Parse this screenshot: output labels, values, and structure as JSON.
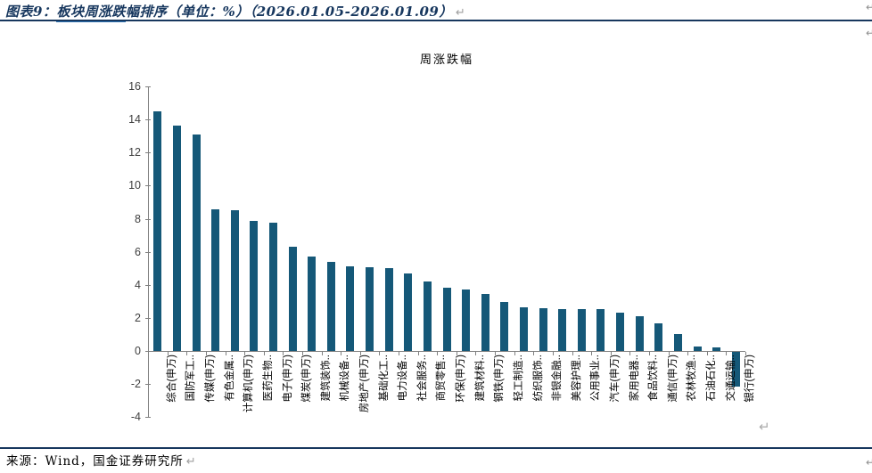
{
  "page": {
    "header": {
      "prefix": "图表9：",
      "underlined": "板块周涨跌",
      "suffix": "幅排序（单位：%）（2026.01.05-2026.01.09）",
      "return_mark": "↵"
    },
    "footer": {
      "source": "来源：Wind，国金证券研究所",
      "return_mark": "↵"
    },
    "colors": {
      "bar": "#155878",
      "rule": "#17375E",
      "title_text": "#17375E",
      "underline": "#2E74B5",
      "axis": "#808080",
      "return_mark": "#9e9e9e"
    }
  },
  "chart_data": {
    "type": "bar",
    "title": "周涨跌幅",
    "categories": [
      "综合(申万)",
      "国防军工..",
      "传媒(申万)",
      "有色金属..",
      "计算机(申万)",
      "医药生物..",
      "电子(申万)",
      "煤炭(申万)",
      "建筑装饰..",
      "机械设备..",
      "房地产(申万)",
      "基础化工..",
      "电力设备..",
      "社会服务..",
      "商贸零售..",
      "环保(申万)",
      "建筑材料..",
      "钢铁(申万)",
      "轻工制造..",
      "纺织服饰..",
      "非银金融..",
      "美容护理..",
      "公用事业..",
      "汽车(申万)",
      "家用电器..",
      "食品饮料..",
      "通信(申万)",
      "农林牧渔..",
      "石油石化..",
      "交通运输..",
      "银行(申万)"
    ],
    "values": [
      14.5,
      13.65,
      13.1,
      8.55,
      8.5,
      7.85,
      7.75,
      6.3,
      5.7,
      5.4,
      5.1,
      5.05,
      5.0,
      4.7,
      4.2,
      3.85,
      3.7,
      3.45,
      2.95,
      2.65,
      2.6,
      2.55,
      2.55,
      2.55,
      2.3,
      2.1,
      1.65,
      1.0,
      0.25,
      0.2,
      -2.1
    ],
    "xlabel": "",
    "ylabel": "",
    "ylim": [
      -4,
      16
    ],
    "yticks": [
      -4,
      -2,
      0,
      2,
      4,
      6,
      8,
      10,
      12,
      14,
      16
    ],
    "grid": false,
    "legend": null,
    "bar_color": "#155878"
  }
}
